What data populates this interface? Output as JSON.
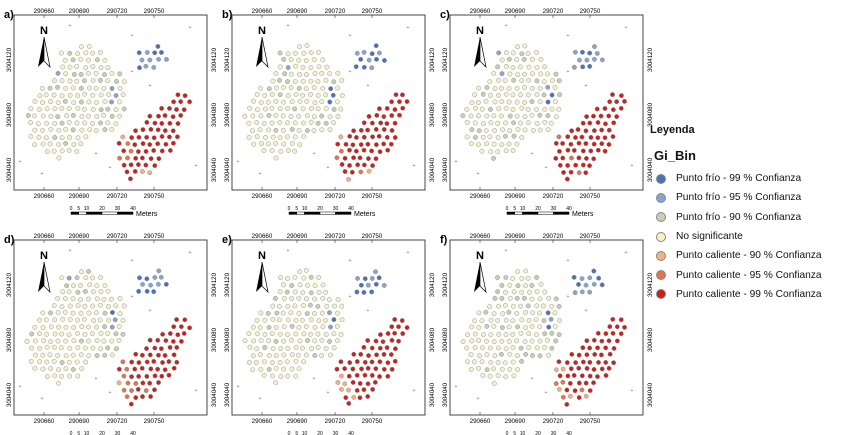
{
  "panels": [
    {
      "label": "a)"
    },
    {
      "label": "b)"
    },
    {
      "label": "c)"
    },
    {
      "label": "d)"
    },
    {
      "label": "e)"
    },
    {
      "label": "f)"
    }
  ],
  "axes": {
    "x_ticks": [
      "290660",
      "290690",
      "290720",
      "290750"
    ],
    "y_ticks": [
      "3004120",
      "3004080",
      "3004040"
    ]
  },
  "north_label": "N",
  "scalebar": {
    "ticks": [
      "0",
      "5",
      "10",
      "20",
      "30",
      "40"
    ],
    "unit": "Meters"
  },
  "legend": {
    "title": "Leyenda",
    "field": "Gi_Bin",
    "items": [
      {
        "label": "Punto frío  - 99 % Confianza",
        "color": "#4a72b8"
      },
      {
        "label": "Punto frío  - 95 % Confianza",
        "color": "#8aa3cc"
      },
      {
        "label": "Punto frío  - 90 % Confianza",
        "color": "#c4d0b4"
      },
      {
        "label": "No significante",
        "color": "#f5f2c8"
      },
      {
        "label": "Punto caliente - 90 % Confianza",
        "color": "#f2b083"
      },
      {
        "label": "Punto caliente - 95 % Confianza",
        "color": "#e0754f"
      },
      {
        "label": "Punto caliente - 99 % Confianza",
        "color": "#c8221e"
      }
    ]
  }
}
